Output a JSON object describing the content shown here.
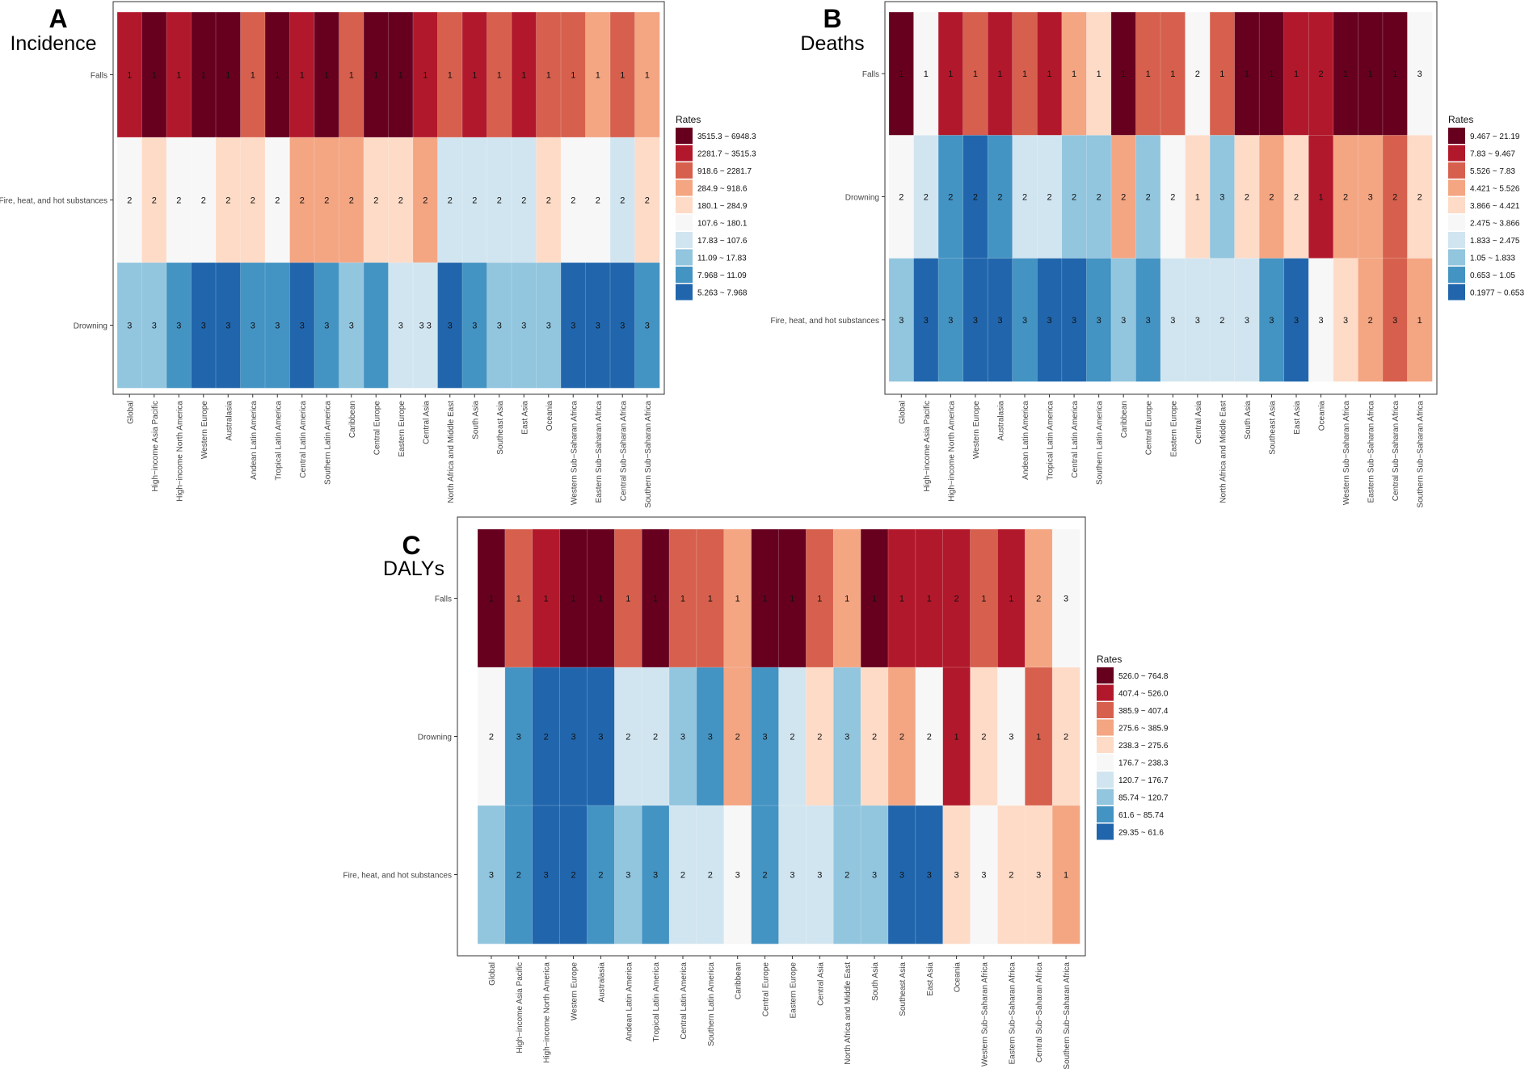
{
  "colors": {
    "r1": "#67001f",
    "r2": "#b2182b",
    "r3": "#d6604d",
    "r4": "#f4a582",
    "r5": "#fddbc7",
    "r6": "#f7f7f7",
    "r7": "#d1e5f0",
    "r8": "#92c5de",
    "r9": "#4393c3",
    "r10": "#2166ac",
    "frame": "#333333",
    "text": "#111111",
    "axis_text": "#444444"
  },
  "chart_data": [
    {
      "type": "heatmap",
      "panel_letter": "A",
      "title": "Incidence",
      "legend_title": "Rates",
      "legend_placement": "right",
      "legend_labels": [
        "3515.3 ~ 6948.3",
        "2281.7 ~ 3515.3",
        "918.6 ~ 2281.7",
        "284.9 ~ 918.6",
        "180.1 ~ 284.9",
        "107.6 ~ 180.1",
        "17.83 ~ 107.6",
        "11.09 ~ 17.83",
        "7.968 ~ 11.09",
        "5.263 ~ 7.968"
      ],
      "columns": [
        "Global",
        "High−income Asia Pacific",
        "High−income North America",
        "Western Europe",
        "Australasia",
        "Andean Latin America",
        "Tropical Latin America",
        "Central Latin America",
        "Southern Latin America",
        "Caribbean",
        "Central Europe",
        "Eastern Europe",
        "Central Asia",
        "North Africa and Middle East",
        "South Asia",
        "Southeast Asia",
        "East Asia",
        "Oceania",
        "Western Sub−Saharan Africa",
        "Eastern Sub−Saharan Africa",
        "Central Sub−Saharan Africa",
        "Southern Sub−Saharan Africa"
      ],
      "rows": [
        "Falls",
        "Fire, heat, and hot substances",
        "Drowning"
      ],
      "color_class": [
        [
          2,
          1,
          2,
          1,
          1,
          3,
          1,
          2,
          1,
          3,
          1,
          1,
          2,
          3,
          2,
          3,
          2,
          3,
          3,
          4,
          3,
          4
        ],
        [
          6,
          5,
          6,
          6,
          5,
          5,
          6,
          4,
          4,
          4,
          5,
          5,
          4,
          7,
          7,
          7,
          7,
          5,
          6,
          6,
          7,
          5
        ],
        [
          8,
          8,
          9,
          10,
          10,
          9,
          9,
          10,
          9,
          8,
          9,
          7,
          7,
          10,
          9,
          8,
          8,
          8,
          10,
          10,
          10,
          9
        ]
      ],
      "rank_labels": [
        [
          "1",
          "1",
          "1",
          "1",
          "1",
          "1",
          "1",
          "1",
          "1",
          "1",
          "1",
          "1",
          "1",
          "1",
          "1",
          "1",
          "1",
          "1",
          "1",
          "1",
          "1",
          "1"
        ],
        [
          "2",
          "2",
          "2",
          "2",
          "2",
          "2",
          "2",
          "2",
          "2",
          "2",
          "2",
          "2",
          "2",
          "2",
          "2",
          "2",
          "2",
          "2",
          "2",
          "2",
          "2",
          "2"
        ],
        [
          "3",
          "3",
          "3",
          "3",
          "3",
          "3",
          "3",
          "3",
          "3",
          "3",
          "",
          "3",
          "3 3",
          "3",
          "3",
          "3",
          "3",
          "3",
          "3",
          "3",
          "3",
          "3"
        ]
      ]
    },
    {
      "type": "heatmap",
      "panel_letter": "B",
      "title": "Deaths",
      "legend_title": "Rates",
      "legend_placement": "right",
      "legend_labels": [
        "9.467 ~ 21.19",
        "7.83 ~ 9.467",
        "5.526 ~ 7.83",
        "4.421 ~ 5.526",
        "3.866 ~ 4.421",
        "2.475 ~ 3.866",
        "1.833 ~ 2.475",
        "1.05 ~ 1.833",
        "0.653 ~ 1.05",
        "0.1977 ~ 0.653"
      ],
      "columns": [
        "Global",
        "High−income Asia Pacific",
        "High−income North America",
        "Western Europe",
        "Australasia",
        "Andean Latin America",
        "Tropical Latin America",
        "Central Latin America",
        "Southern Latin America",
        "Caribbean",
        "Central Europe",
        "Eastern Europe",
        "Central Asia",
        "North Africa and Middle East",
        "South Asia",
        "Southeast Asia",
        "East Asia",
        "Oceania",
        "Western Sub−Saharan Africa",
        "Eastern Sub−Saharan Africa",
        "Central Sub−Saharan Africa",
        "Southern Sub−Saharan Africa"
      ],
      "rows": [
        "Falls",
        "Drowning",
        "Fire, heat, and hot substances"
      ],
      "color_class": [
        [
          1,
          6,
          2,
          3,
          2,
          3,
          2,
          4,
          5,
          1,
          3,
          3,
          6,
          3,
          1,
          1,
          2,
          2,
          1,
          1,
          1,
          6
        ],
        [
          6,
          7,
          9,
          10,
          9,
          7,
          7,
          8,
          8,
          4,
          8,
          6,
          5,
          8,
          5,
          4,
          5,
          2,
          4,
          4,
          3,
          5
        ],
        [
          8,
          10,
          9,
          10,
          10,
          9,
          10,
          10,
          9,
          8,
          9,
          7,
          7,
          7,
          7,
          9,
          10,
          6,
          5,
          4,
          3,
          4
        ]
      ],
      "rank_labels": [
        [
          "1",
          "1",
          "1",
          "1",
          "1",
          "1",
          "1",
          "1",
          "1",
          "1",
          "1",
          "1",
          "2",
          "1",
          "1",
          "1",
          "1",
          "2",
          "1",
          "1",
          "1",
          "3"
        ],
        [
          "2",
          "2",
          "2",
          "2",
          "2",
          "2",
          "2",
          "2",
          "2",
          "2",
          "2",
          "2",
          "1",
          "3",
          "2",
          "2",
          "2",
          "1",
          "2",
          "3",
          "2",
          "2"
        ],
        [
          "3",
          "3",
          "3",
          "3",
          "3",
          "3",
          "3",
          "3",
          "3",
          "3",
          "3",
          "3",
          "3",
          "2",
          "3",
          "3",
          "3",
          "3",
          "3",
          "2",
          "3",
          "1"
        ]
      ]
    },
    {
      "type": "heatmap",
      "panel_letter": "C",
      "title": "DALYs",
      "legend_title": "Rates",
      "legend_placement": "right",
      "legend_labels": [
        "526.0 ~ 764.8",
        "407.4 ~ 526.0",
        "385.9 ~ 407.4",
        "275.6 ~ 385.9",
        "238.3 ~ 275.6",
        "176.7 ~ 238.3",
        "120.7 ~ 176.7",
        "85.74 ~ 120.7",
        "61.6 ~ 85.74",
        "29.35 ~ 61.6"
      ],
      "columns": [
        "Global",
        "High−income Asia Pacific",
        "High−income North America",
        "Western Europe",
        "Australasia",
        "Andean Latin America",
        "Tropical Latin America",
        "Central Latin America",
        "Southern Latin America",
        "Caribbean",
        "Central Europe",
        "Eastern Europe",
        "Central Asia",
        "North Africa and Middle East",
        "South Asia",
        "Southeast Asia",
        "East Asia",
        "Oceania",
        "Western Sub−Saharan Africa",
        "Eastern Sub−Saharan Africa",
        "Central Sub−Saharan Africa",
        "Southern Sub−Saharan Africa"
      ],
      "rows": [
        "Falls",
        "Drowning",
        "Fire, heat, and hot substances"
      ],
      "color_class": [
        [
          1,
          3,
          2,
          1,
          1,
          3,
          1,
          3,
          3,
          4,
          1,
          1,
          3,
          4,
          1,
          2,
          2,
          2,
          3,
          2,
          4,
          6
        ],
        [
          6,
          9,
          10,
          10,
          10,
          7,
          7,
          8,
          9,
          4,
          9,
          7,
          5,
          8,
          5,
          4,
          6,
          2,
          5,
          6,
          3,
          5
        ],
        [
          8,
          9,
          10,
          10,
          9,
          8,
          9,
          7,
          7,
          6,
          9,
          7,
          7,
          8,
          8,
          10,
          10,
          5,
          6,
          5,
          5,
          4
        ]
      ],
      "rank_labels": [
        [
          "1",
          "1",
          "1",
          "1",
          "1",
          "1",
          "1",
          "1",
          "1",
          "1",
          "1",
          "1",
          "1",
          "1",
          "1",
          "1",
          "1",
          "2",
          "1",
          "1",
          "2",
          "3"
        ],
        [
          "2",
          "3",
          "2",
          "3",
          "3",
          "2",
          "2",
          "3",
          "3",
          "2",
          "3",
          "2",
          "2",
          "3",
          "2",
          "2",
          "2",
          "1",
          "2",
          "3",
          "1",
          "2"
        ],
        [
          "3",
          "2",
          "3",
          "2",
          "2",
          "3",
          "3",
          "2",
          "2",
          "3",
          "2",
          "3",
          "3",
          "2",
          "3",
          "3",
          "3",
          "3",
          "3",
          "2",
          "3",
          "1"
        ]
      ]
    }
  ]
}
